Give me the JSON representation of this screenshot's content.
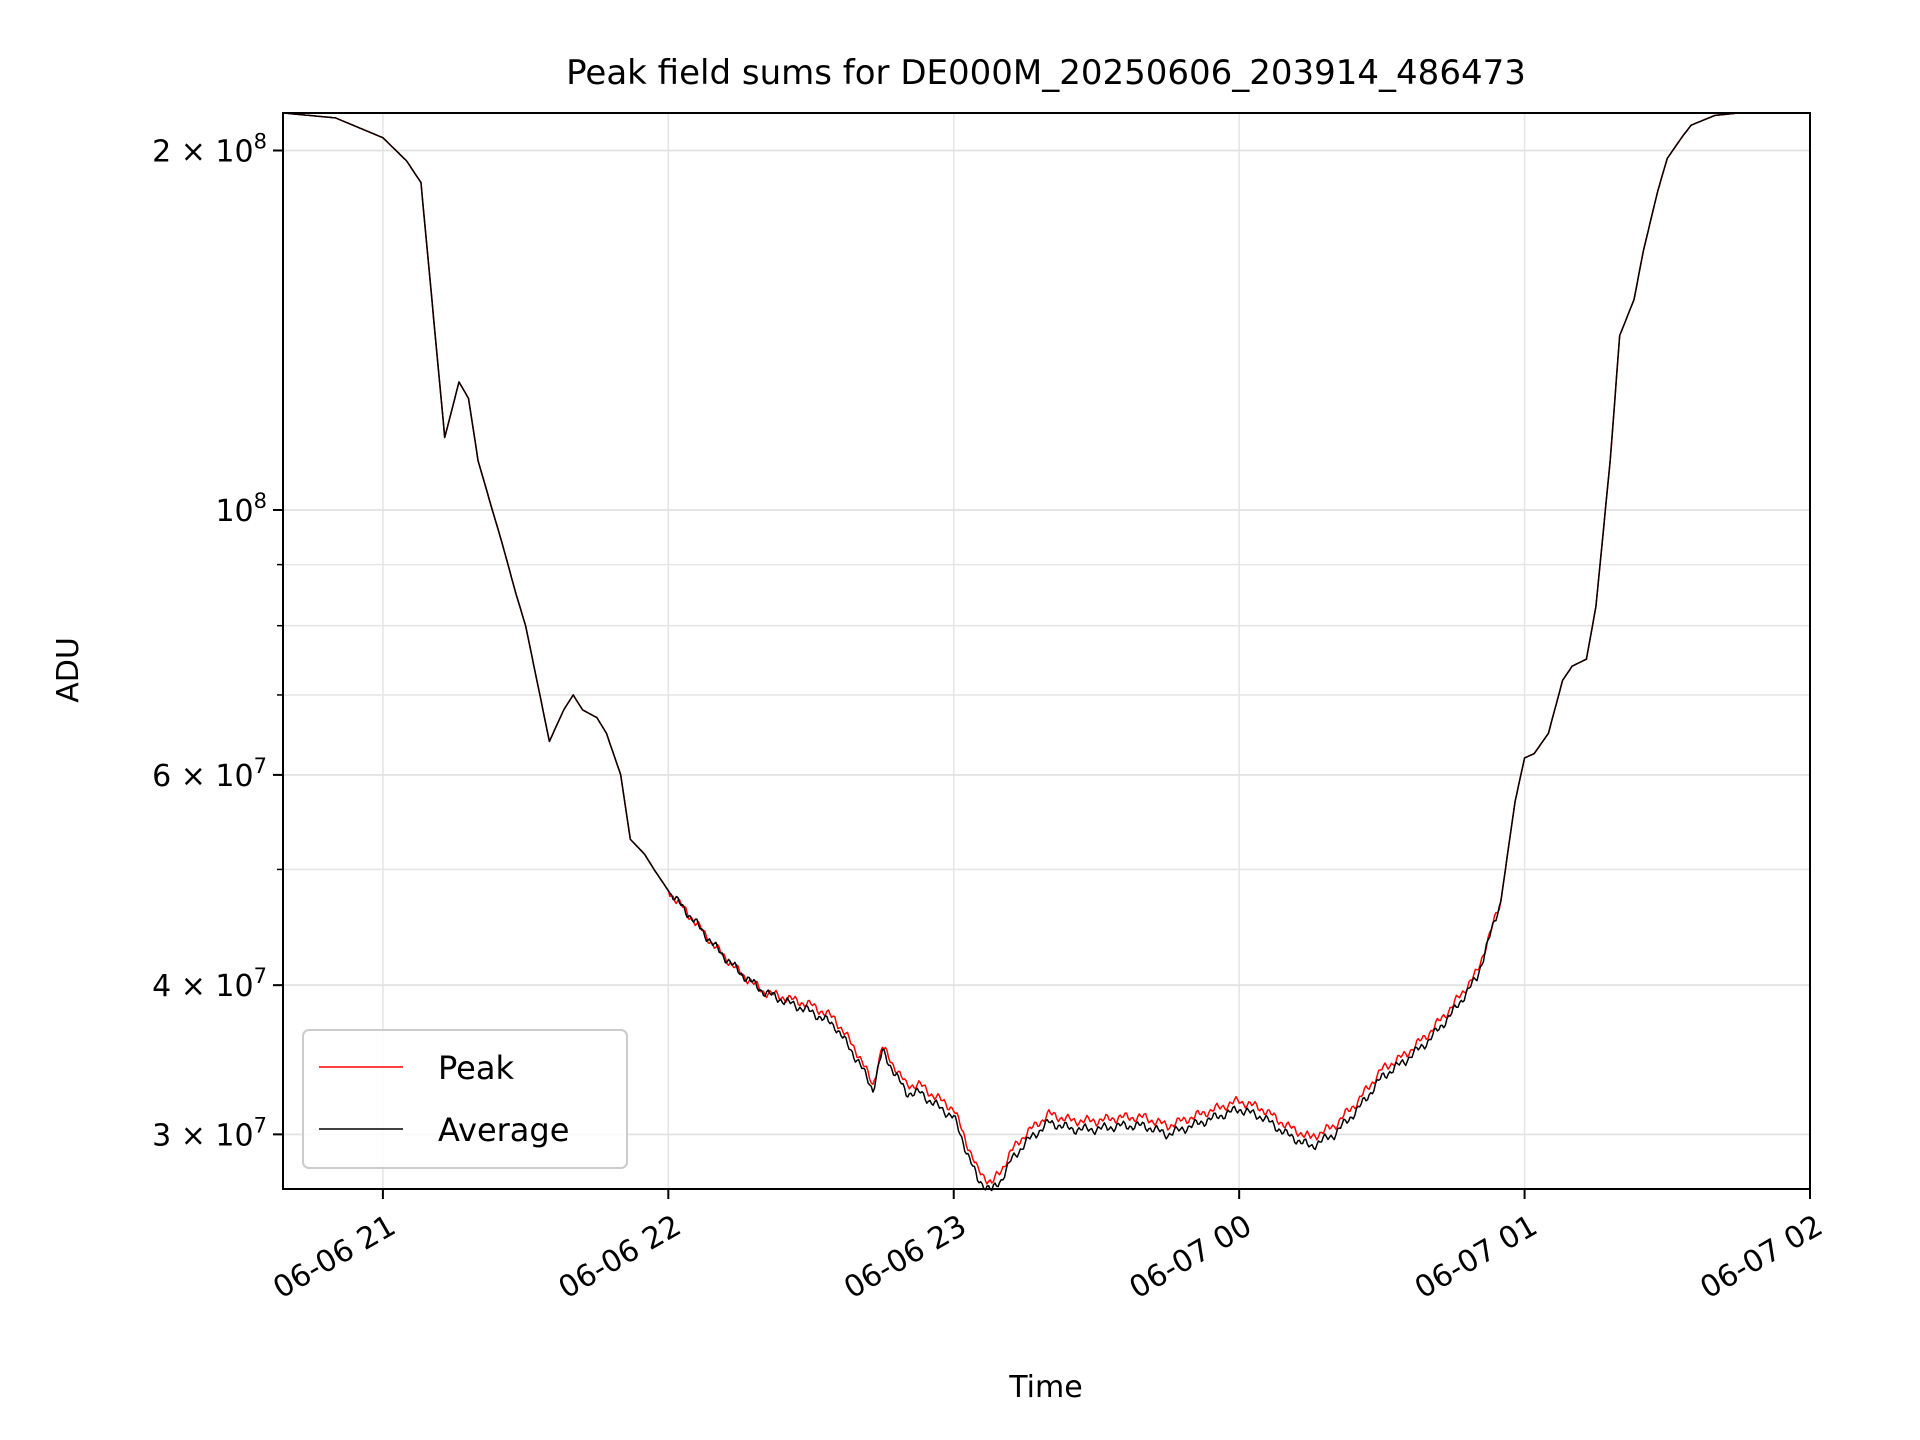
{
  "chart_data": {
    "type": "line",
    "title": "Peak field sums for DE000M_20250606_203914_486473",
    "xlabel": "Time",
    "ylabel": "ADU",
    "yscale": "log",
    "xlim": [
      "2025-06-06 20:39",
      "2025-06-07 02:00"
    ],
    "ylim": [
      27000000,
      215000000
    ],
    "x_ticks": [
      "06-06 21",
      "06-06 22",
      "06-06 23",
      "06-07 00",
      "06-07 01",
      "06-07 02"
    ],
    "y_ticks": [
      {
        "value": 200000000,
        "mant": "2 × 10",
        "exp": "8"
      },
      {
        "value": 100000000,
        "mant": "10",
        "exp": "8"
      },
      {
        "value": 60000000,
        "mant": "6 × 10",
        "exp": "7"
      },
      {
        "value": 40000000,
        "mant": "4 × 10",
        "exp": "7"
      },
      {
        "value": 30000000,
        "mant": "3 × 10",
        "exp": "7"
      }
    ],
    "grid": true,
    "legend": "lower-left",
    "series": [
      {
        "name": "Peak",
        "color": "#ff0000",
        "x": [
          "2025-06-06 20:39",
          "2025-06-06 20:50",
          "2025-06-06 21:00",
          "2025-06-06 21:05",
          "2025-06-06 21:08",
          "2025-06-06 21:11",
          "2025-06-06 21:13",
          "2025-06-06 21:16",
          "2025-06-06 21:18",
          "2025-06-06 21:20",
          "2025-06-06 21:23",
          "2025-06-06 21:25",
          "2025-06-06 21:28",
          "2025-06-06 21:30",
          "2025-06-06 21:33",
          "2025-06-06 21:35",
          "2025-06-06 21:38",
          "2025-06-06 21:40",
          "2025-06-06 21:42",
          "2025-06-06 21:45",
          "2025-06-06 21:47",
          "2025-06-06 21:50",
          "2025-06-06 21:52",
          "2025-06-06 21:55",
          "2025-06-06 21:57",
          "2025-06-06 22:00",
          "2025-06-06 22:05",
          "2025-06-06 22:10",
          "2025-06-06 22:15",
          "2025-06-06 22:20",
          "2025-06-06 22:25",
          "2025-06-06 22:30",
          "2025-06-06 22:35",
          "2025-06-06 22:40",
          "2025-06-06 22:43",
          "2025-06-06 22:45",
          "2025-06-06 22:50",
          "2025-06-06 22:53",
          "2025-06-06 22:55",
          "2025-06-06 23:00",
          "2025-06-06 23:05",
          "2025-06-06 23:08",
          "2025-06-06 23:10",
          "2025-06-06 23:12",
          "2025-06-06 23:15",
          "2025-06-06 23:20",
          "2025-06-06 23:25",
          "2025-06-06 23:30",
          "2025-06-06 23:35",
          "2025-06-06 23:40",
          "2025-06-06 23:45",
          "2025-06-06 23:50",
          "2025-06-06 23:55",
          "2025-06-07 00:00",
          "2025-06-07 00:05",
          "2025-06-07 00:10",
          "2025-06-07 00:15",
          "2025-06-07 00:20",
          "2025-06-07 00:25",
          "2025-06-07 00:30",
          "2025-06-07 00:35",
          "2025-06-07 00:40",
          "2025-06-07 00:45",
          "2025-06-07 00:50",
          "2025-06-07 00:55",
          "2025-06-07 00:58",
          "2025-06-07 01:00",
          "2025-06-07 01:02",
          "2025-06-07 01:05",
          "2025-06-07 01:08",
          "2025-06-07 01:10",
          "2025-06-07 01:13",
          "2025-06-07 01:15",
          "2025-06-07 01:18",
          "2025-06-07 01:20",
          "2025-06-07 01:23",
          "2025-06-07 01:25",
          "2025-06-07 01:28",
          "2025-06-07 01:30",
          "2025-06-07 01:33",
          "2025-06-07 01:35",
          "2025-06-07 01:40",
          "2025-06-07 01:45",
          "2025-06-07 01:50",
          "2025-06-07 02:00"
        ],
        "y": [
          215000000,
          213000000,
          205000000,
          196000000,
          188000000,
          140000000,
          115000000,
          128000000,
          124000000,
          110000000,
          100000000,
          94000000,
          85000000,
          80000000,
          70000000,
          64000000,
          68000000,
          70000000,
          68000000,
          67000000,
          65000000,
          60000000,
          53000000,
          51500000,
          50000000,
          48000000,
          45500000,
          43000000,
          41000000,
          39500000,
          39000000,
          38500000,
          37500000,
          35000000,
          33000000,
          35500000,
          33000000,
          33000000,
          32500000,
          31500000,
          28000000,
          27300000,
          28000000,
          29000000,
          30000000,
          31200000,
          30800000,
          30800000,
          31000000,
          31000000,
          30500000,
          31000000,
          31500000,
          32000000,
          31500000,
          30500000,
          29800000,
          30500000,
          32000000,
          34000000,
          35000000,
          36500000,
          38500000,
          41000000,
          47000000,
          57000000,
          62000000,
          62500000,
          65000000,
          72000000,
          74000000,
          75000000,
          83000000,
          110000000,
          140000000,
          150000000,
          165000000,
          185000000,
          197000000,
          205000000,
          210000000,
          214000000,
          215000000,
          215000000,
          215000000
        ]
      },
      {
        "name": "Average",
        "color": "#000000",
        "x": [
          "2025-06-06 20:39",
          "2025-06-06 20:50",
          "2025-06-06 21:00",
          "2025-06-06 21:05",
          "2025-06-06 21:08",
          "2025-06-06 21:11",
          "2025-06-06 21:13",
          "2025-06-06 21:16",
          "2025-06-06 21:18",
          "2025-06-06 21:20",
          "2025-06-06 21:23",
          "2025-06-06 21:25",
          "2025-06-06 21:28",
          "2025-06-06 21:30",
          "2025-06-06 21:33",
          "2025-06-06 21:35",
          "2025-06-06 21:38",
          "2025-06-06 21:40",
          "2025-06-06 21:42",
          "2025-06-06 21:45",
          "2025-06-06 21:47",
          "2025-06-06 21:50",
          "2025-06-06 21:52",
          "2025-06-06 21:55",
          "2025-06-06 21:57",
          "2025-06-06 22:00",
          "2025-06-06 22:05",
          "2025-06-06 22:10",
          "2025-06-06 22:15",
          "2025-06-06 22:20",
          "2025-06-06 22:25",
          "2025-06-06 22:30",
          "2025-06-06 22:35",
          "2025-06-06 22:40",
          "2025-06-06 22:43",
          "2025-06-06 22:45",
          "2025-06-06 22:50",
          "2025-06-06 22:53",
          "2025-06-06 22:55",
          "2025-06-06 23:00",
          "2025-06-06 23:05",
          "2025-06-06 23:08",
          "2025-06-06 23:10",
          "2025-06-06 23:12",
          "2025-06-06 23:15",
          "2025-06-06 23:20",
          "2025-06-06 23:25",
          "2025-06-06 23:30",
          "2025-06-06 23:35",
          "2025-06-06 23:40",
          "2025-06-06 23:45",
          "2025-06-06 23:50",
          "2025-06-06 23:55",
          "2025-06-07 00:00",
          "2025-06-07 00:05",
          "2025-06-07 00:10",
          "2025-06-07 00:15",
          "2025-06-07 00:20",
          "2025-06-07 00:25",
          "2025-06-07 00:30",
          "2025-06-07 00:35",
          "2025-06-07 00:40",
          "2025-06-07 00:45",
          "2025-06-07 00:50",
          "2025-06-07 00:55",
          "2025-06-07 00:58",
          "2025-06-07 01:00",
          "2025-06-07 01:02",
          "2025-06-07 01:05",
          "2025-06-07 01:08",
          "2025-06-07 01:10",
          "2025-06-07 01:13",
          "2025-06-07 01:15",
          "2025-06-07 01:18",
          "2025-06-07 01:20",
          "2025-06-07 01:23",
          "2025-06-07 01:25",
          "2025-06-07 01:28",
          "2025-06-07 01:30",
          "2025-06-07 01:33",
          "2025-06-07 01:35",
          "2025-06-07 01:40",
          "2025-06-07 01:45",
          "2025-06-07 01:50",
          "2025-06-07 02:00"
        ],
        "y": [
          215000000,
          213000000,
          205000000,
          196000000,
          188000000,
          140000000,
          115000000,
          128000000,
          124000000,
          110000000,
          100000000,
          94000000,
          85000000,
          80000000,
          70000000,
          64000000,
          68000000,
          70000000,
          68000000,
          67000000,
          65000000,
          60000000,
          53000000,
          51500000,
          50000000,
          48000000,
          45500000,
          43000000,
          41000000,
          39500000,
          38700000,
          38000000,
          37000000,
          34500000,
          32700000,
          35200000,
          32500000,
          32500000,
          32000000,
          31000000,
          27500000,
          26900000,
          27500000,
          28500000,
          29500000,
          30700000,
          30300000,
          30300000,
          30500000,
          30500000,
          30000000,
          30500000,
          31000000,
          31500000,
          31000000,
          30000000,
          29300000,
          30000000,
          31500000,
          33500000,
          34600000,
          36000000,
          38000000,
          40600000,
          47000000,
          57000000,
          62000000,
          62500000,
          65000000,
          72000000,
          74000000,
          75000000,
          83000000,
          110000000,
          140000000,
          150000000,
          165000000,
          185000000,
          197000000,
          205000000,
          210000000,
          214000000,
          215000000,
          215000000,
          215000000
        ]
      }
    ]
  }
}
